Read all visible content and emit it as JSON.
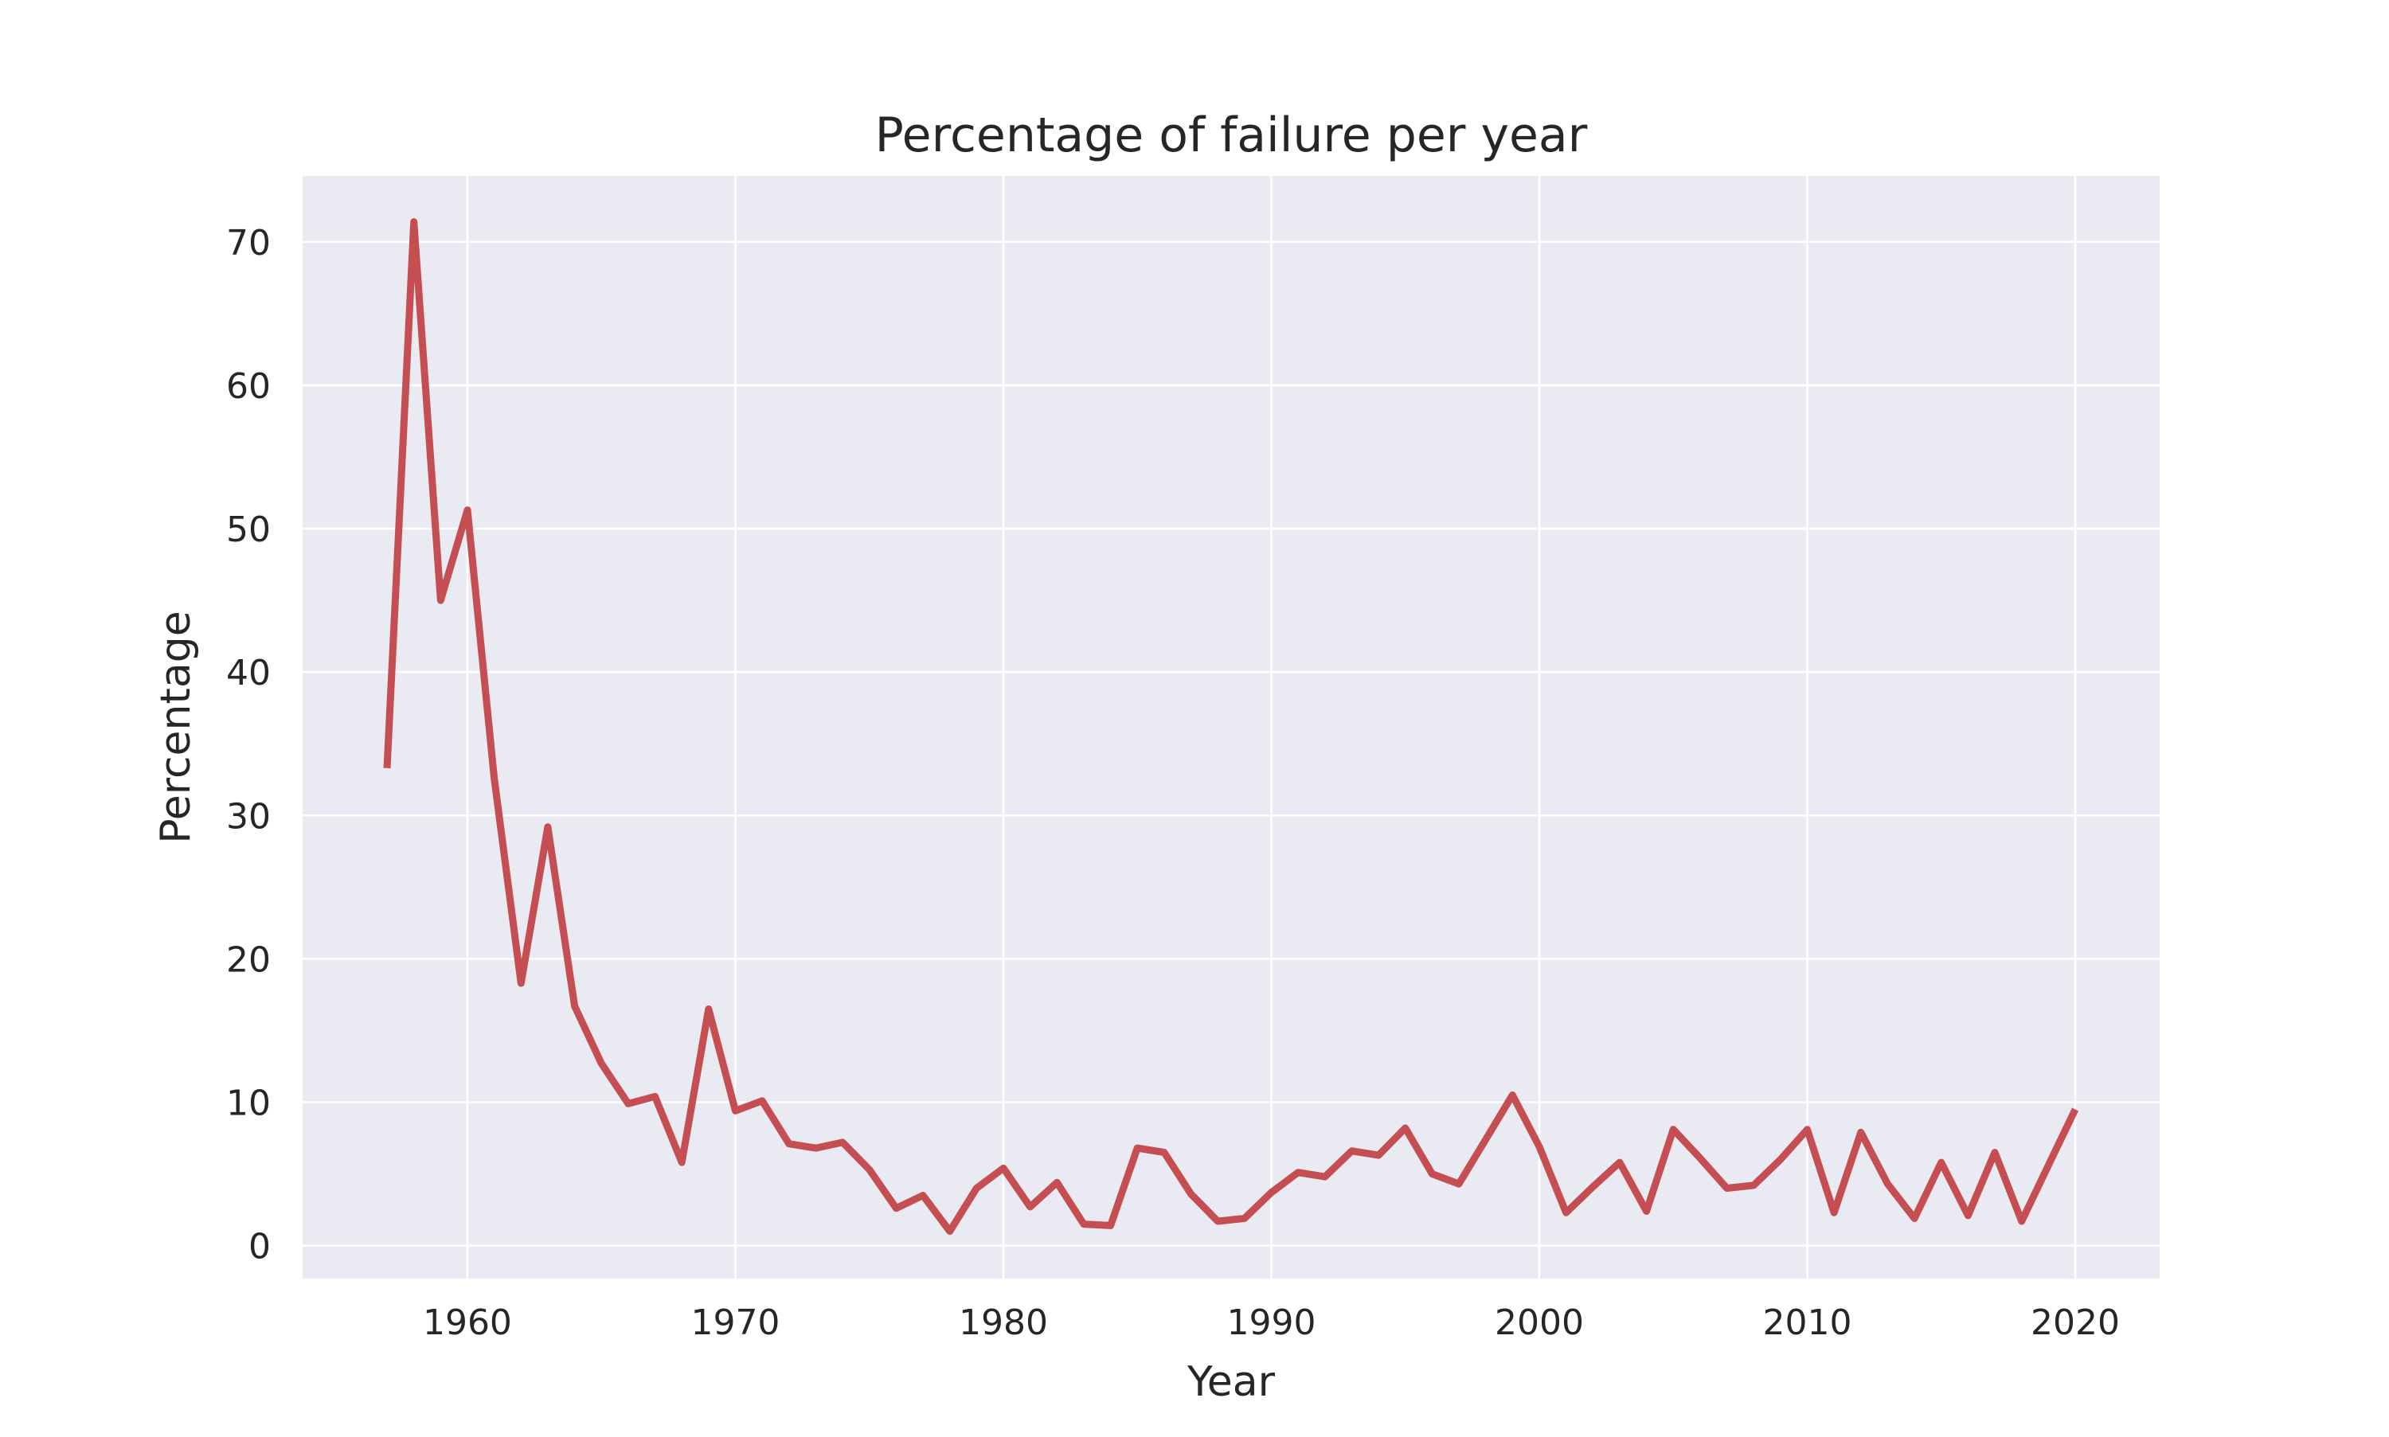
{
  "chart_data": {
    "type": "line",
    "title": "Percentage of failure per year",
    "xlabel": "Year",
    "ylabel": "Percentage",
    "xlim": [
      1953.85,
      2023.15
    ],
    "ylim": [
      -2.3,
      74.6
    ],
    "xticks": [
      1960,
      1970,
      1980,
      1990,
      2000,
      2010,
      2020
    ],
    "yticks": [
      0,
      10,
      20,
      30,
      40,
      50,
      60,
      70
    ],
    "grid": true,
    "legend": "none",
    "colors": {
      "background": "#eaeaf2",
      "line": "#c44e52",
      "grid": "#ffffff"
    },
    "series": [
      {
        "x": [
          1957,
          1958,
          1959,
          1960,
          1961,
          1962,
          1963,
          1964,
          1965,
          1966,
          1967,
          1968,
          1969,
          1970,
          1971,
          1972,
          1973,
          1974,
          1975,
          1976,
          1977,
          1978,
          1979,
          1980,
          1981,
          1982,
          1983,
          1984,
          1985,
          1986,
          1987,
          1988,
          1989,
          1990,
          1991,
          1992,
          1993,
          1994,
          1995,
          1996,
          1997,
          1998,
          1999,
          2000,
          2001,
          2002,
          2003,
          2004,
          2005,
          2006,
          2007,
          2008,
          2009,
          2010,
          2011,
          2012,
          2013,
          2014,
          2015,
          2016,
          2017,
          2018,
          2019,
          2020
        ],
        "values": [
          33.3,
          71.4,
          45.0,
          51.3,
          32.6,
          18.3,
          29.2,
          16.7,
          12.7,
          9.9,
          10.4,
          5.8,
          16.5,
          9.4,
          10.1,
          7.1,
          6.8,
          7.2,
          5.3,
          2.6,
          3.5,
          1.0,
          4.0,
          5.4,
          2.7,
          4.4,
          1.5,
          1.4,
          6.8,
          6.5,
          3.6,
          1.7,
          1.9,
          3.7,
          5.1,
          4.8,
          6.6,
          6.3,
          8.2,
          5.0,
          4.3,
          7.4,
          10.5,
          6.9,
          2.3,
          4.1,
          5.8,
          2.4,
          8.1,
          6.1,
          4.0,
          4.2,
          6.0,
          8.1,
          2.3,
          7.9,
          4.3,
          1.9,
          5.8,
          2.1,
          6.5,
          1.7,
          5.6,
          9.5
        ]
      }
    ]
  }
}
